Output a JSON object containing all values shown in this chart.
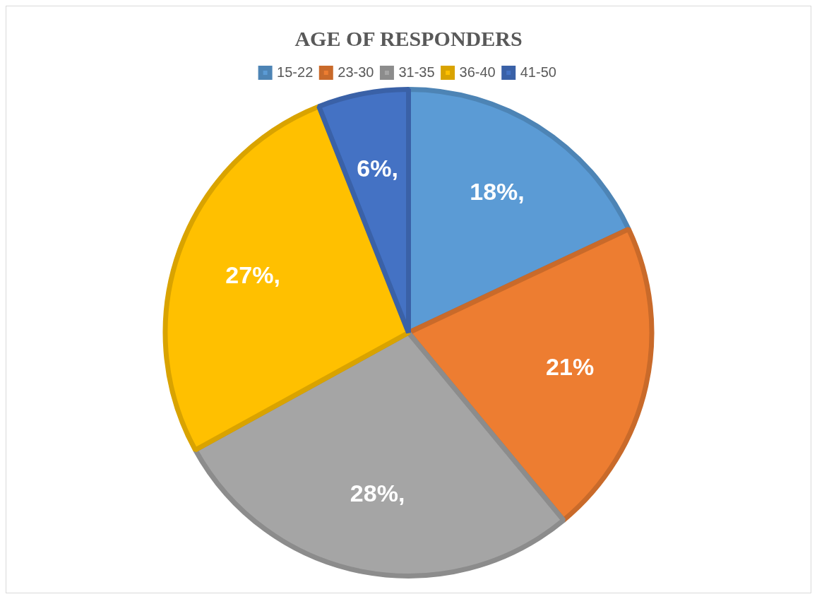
{
  "chart_data": {
    "type": "pie",
    "title": "AGE OF RESPONDERS",
    "categories": [
      "15-22",
      "23-30",
      "31-35",
      "36-40",
      "41-50"
    ],
    "values": [
      18,
      21,
      28,
      27,
      6
    ],
    "colors": [
      "#5b9bd5",
      "#ed7d31",
      "#a5a5a5",
      "#ffc000",
      "#4472c4"
    ],
    "value_labels": [
      "18%,",
      "21%",
      "28%,",
      "27%,",
      "6%,"
    ],
    "legend": "top"
  }
}
